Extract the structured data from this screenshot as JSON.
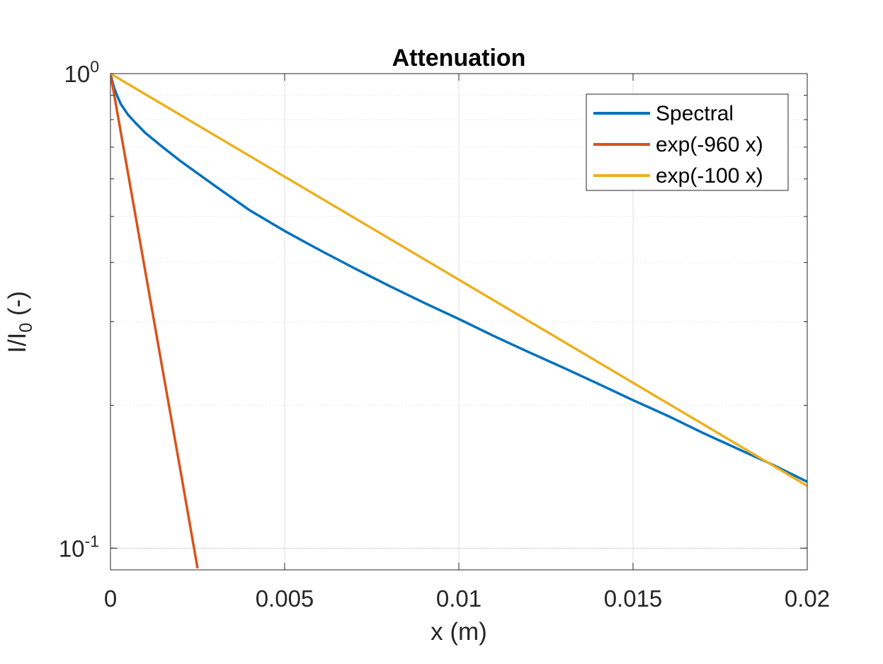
{
  "chart_data": {
    "type": "line",
    "title": "Attenuation",
    "xlabel": "x (m)",
    "ylabel_main": "I/I",
    "ylabel_sub": "0",
    "ylabel_tail": " (-)",
    "xlim": [
      0,
      0.02
    ],
    "ylim": [
      0.09,
      1
    ],
    "yscale": "log",
    "grid": true,
    "legend_position": "top-right",
    "x_ticks": [
      {
        "value": 0,
        "label": "0"
      },
      {
        "value": 0.005,
        "label": "0.005"
      },
      {
        "value": 0.01,
        "label": "0.01"
      },
      {
        "value": 0.015,
        "label": "0.015"
      },
      {
        "value": 0.02,
        "label": "0.02"
      }
    ],
    "y_ticks": [
      {
        "value": 1,
        "base": "10",
        "exp": "0"
      },
      {
        "value": 0.1,
        "base": "10",
        "exp": "-1"
      }
    ],
    "series": [
      {
        "name": "Spectral",
        "color": "#0072BD",
        "x": [
          0,
          0.0001,
          0.0002,
          0.0003,
          0.0005,
          0.0007,
          0.001,
          0.0015,
          0.002,
          0.003,
          0.004,
          0.005,
          0.006,
          0.007,
          0.008,
          0.009,
          0.01,
          0.011,
          0.012,
          0.013,
          0.014,
          0.015,
          0.016,
          0.017,
          0.018,
          0.019,
          0.02
        ],
        "y": [
          1.0,
          0.935,
          0.895,
          0.862,
          0.82,
          0.79,
          0.75,
          0.7,
          0.655,
          0.58,
          0.515,
          0.466,
          0.425,
          0.389,
          0.357,
          0.329,
          0.304,
          0.28,
          0.259,
          0.24,
          0.222,
          0.205,
          0.19,
          0.175,
          0.162,
          0.15,
          0.138
        ]
      },
      {
        "name": "exp(-960 x)",
        "color": "#D95319",
        "x": [
          0,
          0.0005,
          0.001,
          0.0015,
          0.002,
          0.0025
        ],
        "y": [
          1.0,
          0.619,
          0.383,
          0.237,
          0.147,
          0.0907
        ]
      },
      {
        "name": "exp(-100 x)",
        "color": "#EDB120",
        "x": [
          0,
          0.005,
          0.01,
          0.015,
          0.02
        ],
        "y": [
          1.0,
          0.6065,
          0.3679,
          0.2231,
          0.1353
        ]
      }
    ]
  }
}
